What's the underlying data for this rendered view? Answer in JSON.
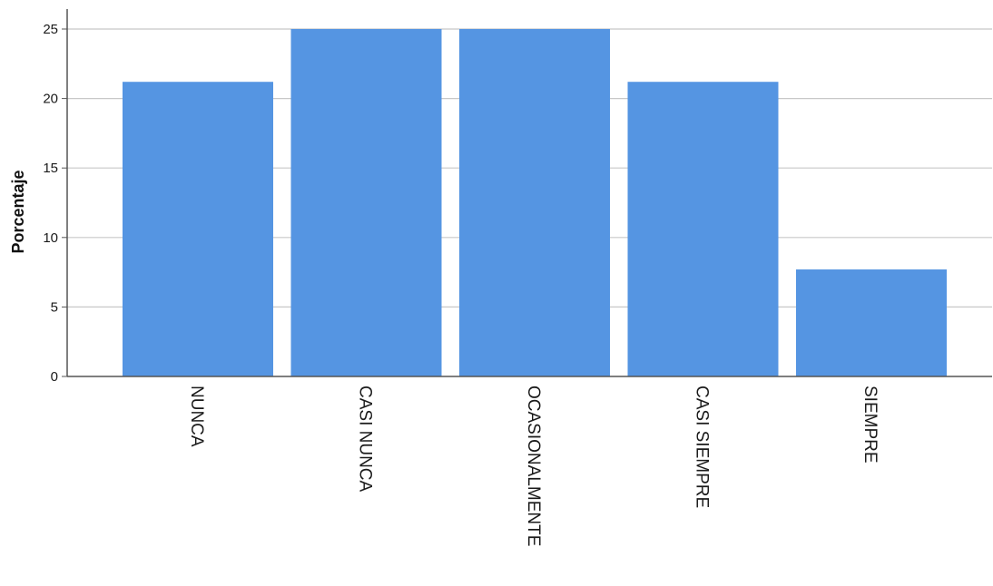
{
  "chart_data": {
    "type": "bar",
    "categories": [
      "NUNCA",
      "CASI NUNCA",
      "OCASIONALMENTE",
      "CASI SIEMPRE",
      "SIEMPRE"
    ],
    "values": [
      21.2,
      25.0,
      25.0,
      21.2,
      7.7
    ],
    "title": "",
    "xlabel": "",
    "ylabel": "Porcentaje",
    "ylim": [
      0,
      25
    ],
    "yticks": [
      "0",
      "5",
      "10",
      "15",
      "20",
      "25"
    ],
    "grid": true,
    "legend": "none",
    "colors": {
      "bar": "#5595e2",
      "grid": "#c8c8c8",
      "axis": "#555555",
      "background": "#ffffff"
    }
  }
}
